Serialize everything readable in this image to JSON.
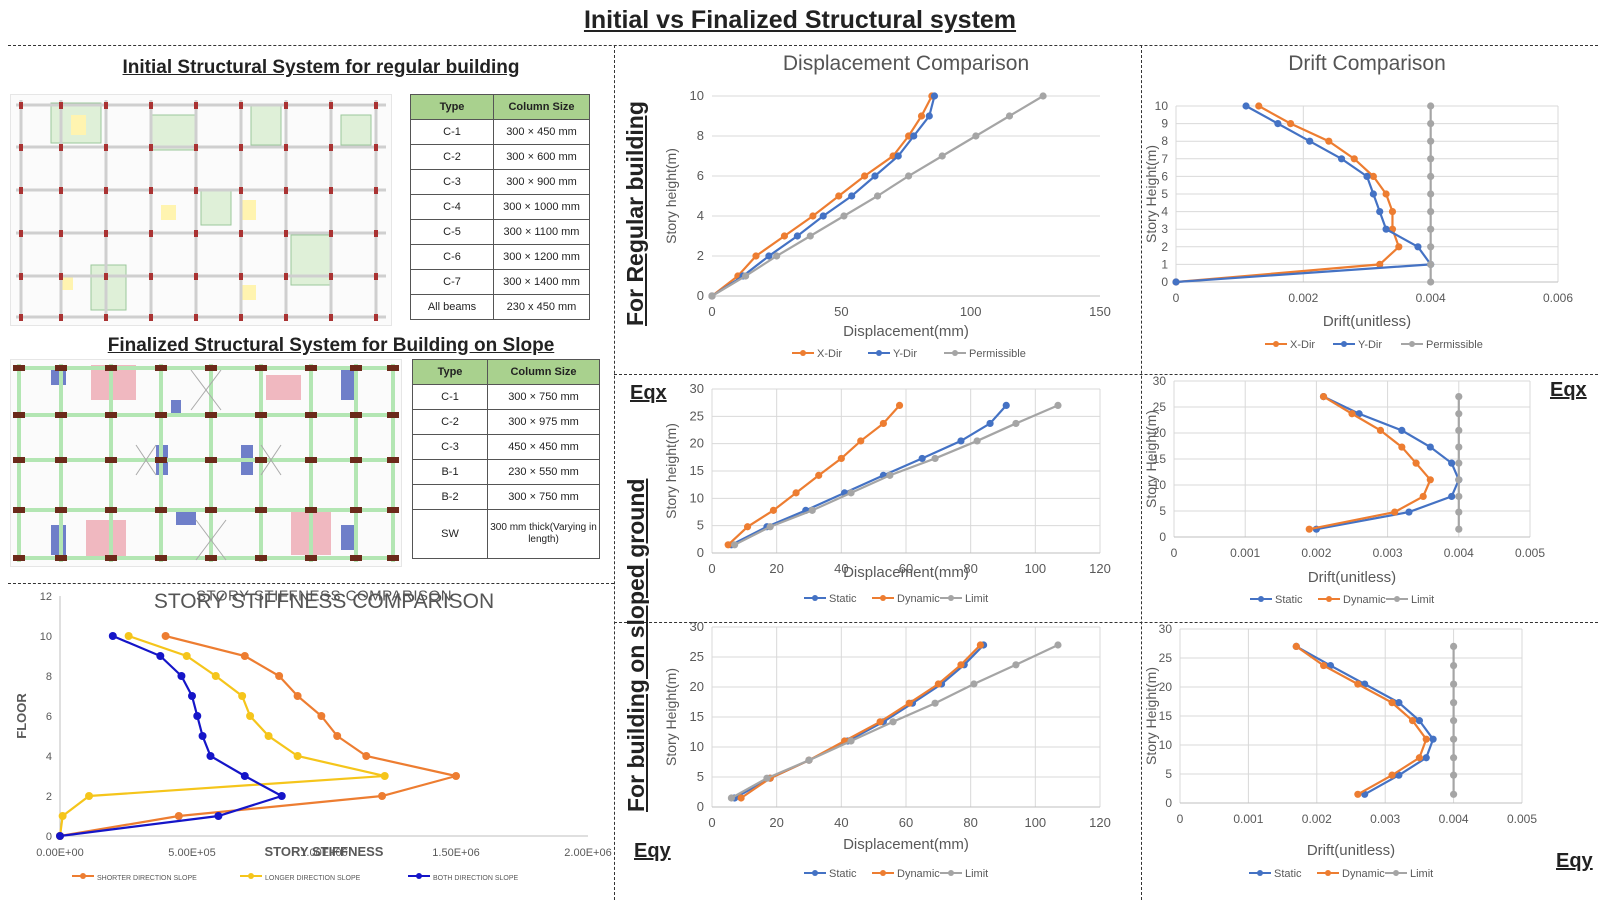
{
  "page_title": "Initial vs Finalized Structural system",
  "section_regular_label": "For Regular building",
  "section_slope_label": "For building on sloped ground",
  "eqx_label": "Eqx",
  "eqy_label": "Eqy",
  "initial_system": {
    "title": "Initial Structural System for regular building",
    "table_headers": [
      "Type",
      "Column Size"
    ],
    "rows": [
      [
        "C-1",
        "300 × 450 mm"
      ],
      [
        "C-2",
        "300 × 600 mm"
      ],
      [
        "C-3",
        "300 × 900 mm"
      ],
      [
        "C-4",
        "300 × 1000 mm"
      ],
      [
        "C-5",
        "300 × 1100 mm"
      ],
      [
        "C-6",
        "300 × 1200 mm"
      ],
      [
        "C-7",
        "300 × 1400 mm"
      ],
      [
        "All beams",
        "230 x 450 mm"
      ]
    ]
  },
  "final_system": {
    "title": "Finalized Structural System for Building on Slope",
    "table_headers": [
      "Type",
      "Column Size"
    ],
    "rows": [
      [
        "C-1",
        "300 × 750 mm"
      ],
      [
        "C-2",
        "300 × 975 mm"
      ],
      [
        "C-3",
        "450 × 450 mm"
      ],
      [
        "B-1",
        "230 × 550 mm"
      ],
      [
        "B-2",
        "300 × 750 mm"
      ],
      [
        "SW",
        "300 mm thick(Varying in length)"
      ]
    ]
  },
  "colors": {
    "orange": "#ed7d31",
    "blue": "#4472c4",
    "gray": "#a5a5a5",
    "yellow": "#f5c51b",
    "darkblue": "#1515c8",
    "plan_green": "#b3e6b3",
    "plan_pink": "#f0b8c0",
    "plan_blue": "#6f7fc9",
    "table_header": "#a9d18e"
  },
  "chart_data": [
    {
      "id": "stiffness",
      "type": "line",
      "title": "STORY STIFFNESS COMPARISON",
      "xlabel": "STORY STIFFNESS",
      "ylabel": "FLOOR",
      "xlim": [
        0,
        2000000
      ],
      "ylim": [
        0,
        12
      ],
      "xticks": [
        0,
        500000,
        1000000,
        1500000,
        2000000
      ],
      "xtick_labels": [
        "0.00E+00",
        "5.00E+05",
        "1.00E+06",
        "1.50E+06",
        "2.00E+06"
      ],
      "yticks": [
        0,
        2,
        4,
        6,
        8,
        10,
        12
      ],
      "ytick_labels": [
        "0",
        "2",
        "4",
        "6",
        "8",
        "10",
        "12"
      ],
      "legend": "bottom",
      "series": [
        {
          "name": "SHORTER DIRECTION SLOPE",
          "color": "#ed7d31",
          "x": [
            0,
            450000,
            1220000,
            1500000,
            1160000,
            1050000,
            990000,
            900000,
            830000,
            700000,
            400000
          ],
          "y": [
            0,
            1,
            2,
            3,
            4,
            5,
            6,
            7,
            8,
            9,
            10
          ]
        },
        {
          "name": "LONGER DIRECTION SLOPE",
          "color": "#f5c51b",
          "x": [
            0,
            10000,
            110000,
            1230000,
            900000,
            790000,
            720000,
            690000,
            590000,
            480000,
            260000
          ],
          "y": [
            0,
            1,
            2,
            3,
            4,
            5,
            6,
            7,
            8,
            9,
            10
          ]
        },
        {
          "name": "BOTH DIRECTION SLOPE",
          "color": "#1515c8",
          "x": [
            0,
            600000,
            840000,
            700000,
            570000,
            540000,
            520000,
            500000,
            460000,
            380000,
            200000
          ],
          "y": [
            0,
            1,
            2,
            3,
            4,
            5,
            6,
            7,
            8,
            9,
            10
          ]
        }
      ]
    },
    {
      "id": "disp_reg",
      "type": "line",
      "title": "Displacement Comparison",
      "xlabel": "Displacement(mm)",
      "ylabel": "Story height(m)",
      "xlim": [
        0,
        150
      ],
      "ylim": [
        0,
        10
      ],
      "xticks": [
        0,
        50,
        100,
        150
      ],
      "xtick_labels": [
        "0",
        "50",
        "100",
        "150"
      ],
      "yticks": [
        0,
        2,
        4,
        6,
        8,
        10
      ],
      "ytick_labels": [
        "0",
        "2",
        "4",
        "6",
        "8",
        "10"
      ],
      "legend": "bottom",
      "series": [
        {
          "name": "X-Dir",
          "color": "#ed7d31",
          "x": [
            0,
            10,
            17,
            28,
            39,
            49,
            59,
            70,
            76,
            81,
            85
          ],
          "y": [
            0,
            1,
            2,
            3,
            4,
            5,
            6,
            7,
            8,
            9,
            10
          ]
        },
        {
          "name": "Y-Dir",
          "color": "#4472c4",
          "x": [
            0,
            12,
            22,
            33,
            43,
            54,
            63,
            72,
            78,
            84,
            86
          ],
          "y": [
            0,
            1,
            2,
            3,
            4,
            5,
            6,
            7,
            8,
            9,
            10
          ]
        },
        {
          "name": "Permissible",
          "color": "#a5a5a5",
          "x": [
            0,
            13,
            25,
            38,
            51,
            64,
            76,
            89,
            102,
            115,
            128
          ],
          "y": [
            0,
            1,
            2,
            3,
            4,
            5,
            6,
            7,
            8,
            9,
            10
          ]
        }
      ]
    },
    {
      "id": "drift_reg",
      "type": "line",
      "title": "Drift Comparison",
      "xlabel": "Drift(unitless)",
      "ylabel": "Story Height(m)",
      "xlim": [
        0,
        0.006
      ],
      "ylim": [
        0,
        10
      ],
      "xticks": [
        0,
        0.002,
        0.004,
        0.006
      ],
      "xtick_labels": [
        "0",
        "0.002",
        "0.004",
        "0.006"
      ],
      "yticks": [
        0,
        1,
        2,
        3,
        4,
        5,
        6,
        7,
        8,
        9,
        10
      ],
      "ytick_labels": [
        "0",
        "1",
        "2",
        "3",
        "4",
        "5",
        "6",
        "7",
        "8",
        "9",
        "10"
      ],
      "legend": "bottom",
      "series": [
        {
          "name": "X-Dir",
          "color": "#ed7d31",
          "x": [
            0,
            0.0032,
            0.0035,
            0.0034,
            0.0034,
            0.0033,
            0.0031,
            0.0028,
            0.0024,
            0.0018,
            0.0013
          ],
          "y": [
            0,
            1,
            2,
            3,
            4,
            5,
            6,
            7,
            8,
            9,
            10
          ]
        },
        {
          "name": "Y-Dir",
          "color": "#4472c4",
          "x": [
            0,
            0.004,
            0.0038,
            0.0033,
            0.0032,
            0.0031,
            0.003,
            0.0026,
            0.0021,
            0.0016,
            0.0011
          ],
          "y": [
            0,
            1,
            2,
            3,
            4,
            5,
            6,
            7,
            8,
            9,
            10
          ]
        },
        {
          "name": "Permissible",
          "color": "#a5a5a5",
          "x": [
            0.004,
            0.004,
            0.004,
            0.004,
            0.004,
            0.004,
            0.004,
            0.004,
            0.004,
            0.004,
            0.004
          ],
          "y": [
            0,
            1,
            2,
            3,
            4,
            5,
            6,
            7,
            8,
            9,
            10
          ]
        }
      ]
    },
    {
      "id": "disp_eqx",
      "type": "line",
      "title": "",
      "xlabel": "Displacement(mm)",
      "ylabel": "Story height(m)",
      "xlim": [
        0,
        120
      ],
      "ylim": [
        0,
        30
      ],
      "xticks": [
        0,
        20,
        40,
        60,
        80,
        100,
        120
      ],
      "xtick_labels": [
        "0",
        "20",
        "40",
        "60",
        "80",
        "100",
        "120"
      ],
      "yticks": [
        0,
        5,
        10,
        15,
        20,
        25,
        30
      ],
      "ytick_labels": [
        "0",
        "5",
        "10",
        "15",
        "20",
        "25",
        "30"
      ],
      "legend": "bottom",
      "series": [
        {
          "name": "Static",
          "color": "#4472c4",
          "x": [
            6,
            17,
            29,
            41,
            53,
            65,
            77,
            86,
            91
          ],
          "y": [
            1.5,
            4.8,
            7.8,
            11,
            14.2,
            17.3,
            20.5,
            23.7,
            27
          ]
        },
        {
          "name": "Dynamic",
          "color": "#ed7d31",
          "x": [
            5,
            11,
            19,
            26,
            33,
            40,
            46,
            53,
            58
          ],
          "y": [
            1.5,
            4.8,
            7.8,
            11,
            14.2,
            17.3,
            20.5,
            23.7,
            27
          ]
        },
        {
          "name": "Limit",
          "color": "#a5a5a5",
          "x": [
            7,
            18,
            31,
            43,
            55,
            69,
            82,
            94,
            107
          ],
          "y": [
            1.5,
            4.8,
            7.8,
            11,
            14.2,
            17.3,
            20.5,
            23.7,
            27
          ]
        }
      ]
    },
    {
      "id": "drift_eqx",
      "type": "line",
      "title": "",
      "xlabel": "Drift(unitless)",
      "ylabel": "Story Height(m)",
      "xlim": [
        0,
        0.005
      ],
      "ylim": [
        0,
        30
      ],
      "xticks": [
        0,
        0.001,
        0.002,
        0.003,
        0.004,
        0.005
      ],
      "xtick_labels": [
        "0",
        "0.001",
        "0.002",
        "0.003",
        "0.004",
        "0.005"
      ],
      "yticks": [
        0,
        5,
        10,
        15,
        20,
        25,
        30
      ],
      "ytick_labels": [
        "0",
        "5",
        "10",
        "15",
        "20",
        "25",
        "30"
      ],
      "legend": "bottom",
      "series": [
        {
          "name": "Static",
          "color": "#4472c4",
          "x": [
            0.002,
            0.0033,
            0.0039,
            0.004,
            0.0039,
            0.0036,
            0.0032,
            0.0026,
            0.0021
          ],
          "y": [
            1.5,
            4.8,
            7.8,
            11,
            14.2,
            17.3,
            20.5,
            23.7,
            27
          ]
        },
        {
          "name": "Dynamic",
          "color": "#ed7d31",
          "x": [
            0.0019,
            0.0031,
            0.0035,
            0.0036,
            0.0034,
            0.0032,
            0.0029,
            0.0025,
            0.0021
          ],
          "y": [
            1.5,
            4.8,
            7.8,
            11,
            14.2,
            17.3,
            20.5,
            23.7,
            27
          ]
        },
        {
          "name": "Limit",
          "color": "#a5a5a5",
          "x": [
            0.004,
            0.004,
            0.004,
            0.004,
            0.004,
            0.004,
            0.004,
            0.004,
            0.004
          ],
          "y": [
            1.5,
            4.8,
            7.8,
            11,
            14.2,
            17.3,
            20.5,
            23.7,
            27
          ]
        }
      ]
    },
    {
      "id": "disp_eqy",
      "type": "line",
      "title": "",
      "xlabel": "Displacement(mm)",
      "ylabel": "Story Height(m)",
      "xlim": [
        0,
        120
      ],
      "ylim": [
        0,
        30
      ],
      "xticks": [
        0,
        20,
        40,
        60,
        80,
        100,
        120
      ],
      "xtick_labels": [
        "0",
        "20",
        "40",
        "60",
        "80",
        "100",
        "120"
      ],
      "yticks": [
        0,
        5,
        10,
        15,
        20,
        25,
        30
      ],
      "ytick_labels": [
        "0",
        "5",
        "10",
        "15",
        "20",
        "25",
        "30"
      ],
      "legend": "bottom",
      "series": [
        {
          "name": "Static",
          "color": "#4472c4",
          "x": [
            7,
            18,
            30,
            42,
            53,
            62,
            71,
            78,
            84
          ],
          "y": [
            1.5,
            4.8,
            7.8,
            11,
            14.2,
            17.3,
            20.5,
            23.7,
            27
          ]
        },
        {
          "name": "Dynamic",
          "color": "#ed7d31",
          "x": [
            9,
            18,
            30,
            41,
            52,
            61,
            70,
            77,
            83
          ],
          "y": [
            1.5,
            4.8,
            7.8,
            11,
            14.2,
            17.3,
            20.5,
            23.7,
            27
          ]
        },
        {
          "name": "Limit",
          "color": "#a5a5a5",
          "x": [
            6,
            17,
            30,
            43,
            56,
            69,
            81,
            94,
            107
          ],
          "y": [
            1.5,
            4.8,
            7.8,
            11,
            14.2,
            17.3,
            20.5,
            23.7,
            27
          ]
        }
      ]
    },
    {
      "id": "drift_eqy",
      "type": "line",
      "title": "",
      "xlabel": "Drift(unitless)",
      "ylabel": "Story Height(m)",
      "xlim": [
        0,
        0.005
      ],
      "ylim": [
        0,
        30
      ],
      "xticks": [
        0,
        0.001,
        0.002,
        0.003,
        0.004,
        0.005
      ],
      "xtick_labels": [
        "0",
        "0.001",
        "0.002",
        "0.003",
        "0.004",
        "0.005"
      ],
      "yticks": [
        0,
        5,
        10,
        15,
        20,
        25,
        30
      ],
      "ytick_labels": [
        "0",
        "5",
        "10",
        "15",
        "20",
        "25",
        "30"
      ],
      "legend": "bottom",
      "series": [
        {
          "name": "Static",
          "color": "#4472c4",
          "x": [
            0.0027,
            0.0032,
            0.0036,
            0.0037,
            0.0035,
            0.0032,
            0.0027,
            0.0022,
            0.0017
          ],
          "y": [
            1.5,
            4.8,
            7.8,
            11,
            14.2,
            17.3,
            20.5,
            23.7,
            27
          ]
        },
        {
          "name": "Dynamic",
          "color": "#ed7d31",
          "x": [
            0.0026,
            0.0031,
            0.0035,
            0.0036,
            0.0034,
            0.0031,
            0.0026,
            0.0021,
            0.0017
          ],
          "y": [
            1.5,
            4.8,
            7.8,
            11,
            14.2,
            17.3,
            20.5,
            23.7,
            27
          ]
        },
        {
          "name": "Limit",
          "color": "#a5a5a5",
          "x": [
            0.004,
            0.004,
            0.004,
            0.004,
            0.004,
            0.004,
            0.004,
            0.004,
            0.004
          ],
          "y": [
            1.5,
            4.8,
            7.8,
            11,
            14.2,
            17.3,
            20.5,
            23.7,
            27
          ]
        }
      ]
    }
  ]
}
